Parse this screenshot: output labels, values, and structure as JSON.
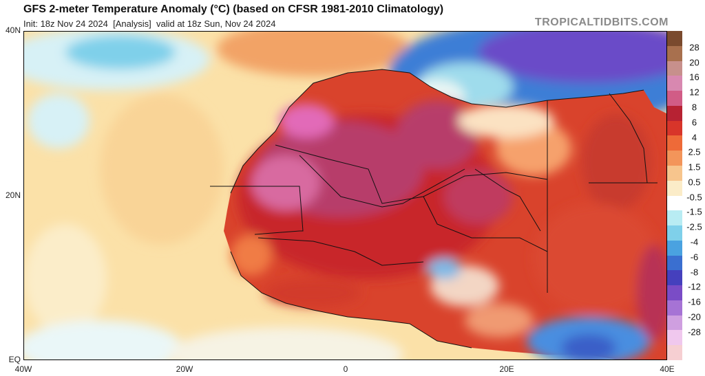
{
  "header": {
    "title": "GFS 2-meter Temperature Anomaly (°C) (based on CFSR 1981-2010 Climatology)",
    "init_label": "Init: 18z Nov 24 2024",
    "run_type": "[Analysis]",
    "valid_label": "valid at 18z Sun, Nov 24 2024",
    "brand": "TROPICALTIDBITS.COM"
  },
  "map": {
    "region": "North Africa",
    "y_ticks": [
      "40N",
      "20N",
      "EQ"
    ],
    "x_ticks": [
      "40W",
      "20W",
      "0",
      "20E",
      "40E"
    ],
    "colors": {
      "ocean_mild_warm": "#fbe7b0",
      "ocean_cool": "#cbeaf4",
      "sahara_hot": "#c8282a",
      "sahara_very_hot": "#b73d6b",
      "atlas_pink": "#e26ab8",
      "mediterranean_cold": "#3d7ed6",
      "europe_very_cold": "#6a4cc8",
      "coast_warm": "#e67c3a"
    }
  },
  "colorbar": {
    "labels": [
      "28",
      "20",
      "16",
      "12",
      "8",
      "6",
      "4",
      "2.5",
      "1.5",
      "0.5",
      "-0.5",
      "-1.5",
      "-2.5",
      "-4",
      "-6",
      "-8",
      "-12",
      "-16",
      "-20",
      "-28"
    ],
    "colors": [
      "#7a4a2e",
      "#a8704e",
      "#c7908c",
      "#d888b0",
      "#d15c86",
      "#b72233",
      "#d8352a",
      "#ee6a38",
      "#f3955a",
      "#f7c58d",
      "#fbecc8",
      "#ffffff",
      "#b8ecf3",
      "#7fd0ea",
      "#4aa2e0",
      "#3a6fd0",
      "#4540bd",
      "#7a4cc6",
      "#a673d5",
      "#cf9fe0",
      "#f0c8ee",
      "#f6cfd2"
    ]
  }
}
